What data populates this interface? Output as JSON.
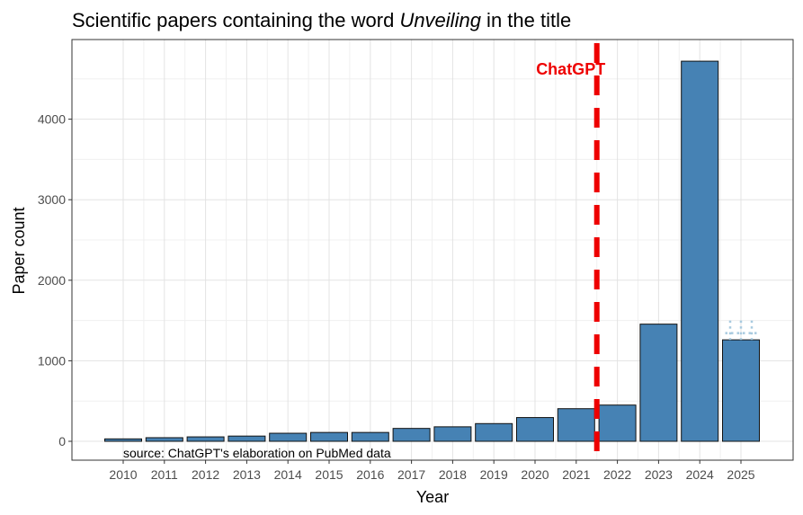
{
  "chart_data": {
    "type": "bar",
    "title_prefix": "Scientific papers containing the word ",
    "title_emphasis": "Unveiling",
    "title_suffix": " in the title",
    "xlabel": "Year",
    "ylabel": "Paper count",
    "categories": [
      "2010",
      "2011",
      "2012",
      "2013",
      "2014",
      "2015",
      "2016",
      "2017",
      "2018",
      "2019",
      "2020",
      "2021",
      "2022",
      "2023",
      "2024",
      "2025"
    ],
    "values": [
      30,
      45,
      55,
      65,
      100,
      110,
      110,
      160,
      180,
      220,
      295,
      405,
      450,
      1455,
      4720,
      1260
    ],
    "projection": {
      "category": "2025",
      "value": 1500
    },
    "ylim": [
      -200,
      4950
    ],
    "yticks": [
      0,
      1000,
      2000,
      3000,
      4000
    ],
    "grid": true,
    "bar_color": "#4682B4",
    "annotation": {
      "label": "ChatGPT",
      "position_after_category": "2021",
      "color": "#EE0000"
    },
    "source_note": "source: ChatGPT's elaboration on PubMed data"
  }
}
